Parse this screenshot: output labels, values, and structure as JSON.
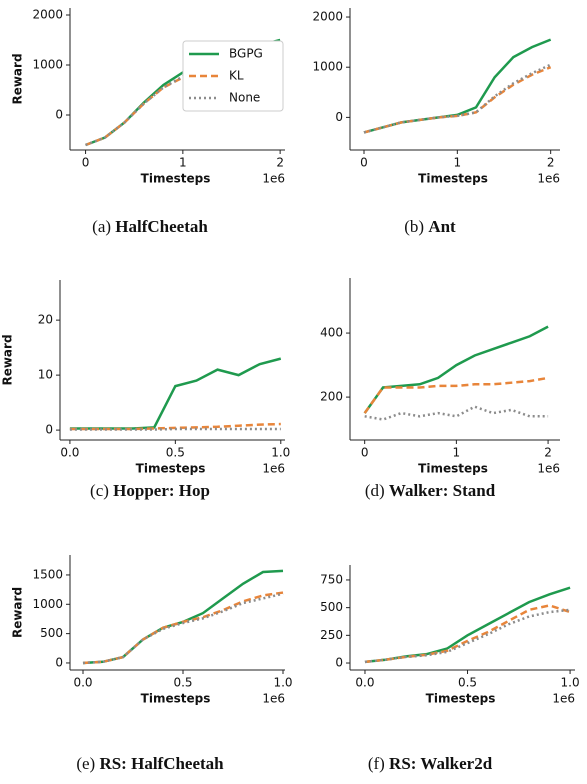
{
  "chart_data": [
    {
      "type": "line",
      "caption_label": "(a)",
      "caption": "HalfCheetah",
      "ylabel": "Reward",
      "xlabel": "Timesteps",
      "x_offset": "1e6",
      "x": [
        0,
        0.2,
        0.4,
        0.6,
        0.8,
        1.0,
        1.2,
        1.4,
        1.6,
        1.8,
        2.0
      ],
      "xlim": [
        -0.16,
        2.05
      ],
      "ylim": [
        -700,
        2140
      ],
      "xticks": [
        0,
        1,
        2
      ],
      "yticks": [
        0,
        1000,
        2000
      ],
      "legend": "center right",
      "series": [
        {
          "name": "BGPG",
          "color": "#1f9a4e",
          "style": "solid",
          "values": [
            -600,
            -450,
            -150,
            250,
            600,
            850,
            1050,
            1200,
            1300,
            1400,
            1500
          ]
        },
        {
          "name": "KL",
          "color": "#e8853a",
          "style": "dashed",
          "values": [
            -600,
            -450,
            -150,
            230,
            550,
            750,
            880,
            950,
            1000,
            1050,
            1100
          ]
        },
        {
          "name": "None",
          "color": "#8c8c8c",
          "style": "dotted",
          "values": [
            -600,
            -450,
            -150,
            230,
            550,
            770,
            900,
            980,
            1050,
            1120,
            1200
          ]
        }
      ]
    },
    {
      "type": "line",
      "caption_label": "(b)",
      "caption": "Ant",
      "xlabel": "Timesteps",
      "x_offset": "1e6",
      "x": [
        0,
        0.2,
        0.4,
        0.6,
        0.8,
        1.0,
        1.2,
        1.4,
        1.6,
        1.8,
        2.0
      ],
      "xlim": [
        -0.15,
        2.1
      ],
      "ylim": [
        -650,
        2180
      ],
      "xticks": [
        0,
        1,
        2
      ],
      "yticks": [
        0,
        1000,
        2000
      ],
      "series": [
        {
          "color": "#1f9a4e",
          "style": "solid",
          "values": [
            -300,
            -200,
            -100,
            -50,
            0,
            50,
            200,
            800,
            1200,
            1400,
            1550
          ]
        },
        {
          "color": "#e8853a",
          "style": "dashed",
          "values": [
            -300,
            -200,
            -100,
            -50,
            0,
            30,
            100,
            400,
            650,
            850,
            1000
          ]
        },
        {
          "color": "#8c8c8c",
          "style": "dotted",
          "values": [
            -300,
            -200,
            -100,
            -50,
            0,
            30,
            100,
            420,
            680,
            880,
            1050
          ]
        }
      ]
    },
    {
      "type": "line",
      "caption_label": "(c)",
      "caption": "Hopper: Hop",
      "ylabel": "Reward",
      "xlabel": "Timesteps",
      "x_offset": "1e6",
      "x": [
        0,
        0.1,
        0.2,
        0.3,
        0.4,
        0.5,
        0.6,
        0.7,
        0.8,
        0.9,
        1.0
      ],
      "xlim": [
        -0.047,
        1.02
      ],
      "ylim": [
        -1.8,
        27.3
      ],
      "xticks": [
        {
          "value": 0,
          "label": "0.0"
        },
        {
          "value": 0.5,
          "label": "0.5"
        },
        {
          "value": 1,
          "label": "1.0"
        }
      ],
      "yticks": [
        0,
        10,
        20
      ],
      "series": [
        {
          "color": "#1f9a4e",
          "style": "solid",
          "values": [
            0.3,
            0.3,
            0.3,
            0.3,
            0.5,
            8,
            9,
            11,
            10,
            12,
            13
          ]
        },
        {
          "color": "#e8853a",
          "style": "dashed",
          "values": [
            0.2,
            0.2,
            0.2,
            0.2,
            0.3,
            0.4,
            0.5,
            0.6,
            0.8,
            1,
            1.1
          ]
        },
        {
          "color": "#8c8c8c",
          "style": "dotted",
          "values": [
            0.1,
            0.1,
            0.1,
            0.1,
            0.1,
            0.2,
            0.2,
            0.2,
            0.2,
            0.2,
            0.2
          ]
        }
      ]
    },
    {
      "type": "line",
      "caption_label": "(d)",
      "caption": "Walker: Stand",
      "xlabel": "Timesteps",
      "x_offset": "1e6",
      "x": [
        0,
        0.2,
        0.4,
        0.6,
        0.8,
        1.0,
        1.2,
        1.4,
        1.6,
        1.8,
        2.0
      ],
      "xlim": [
        -0.16,
        2.13
      ],
      "ylim": [
        66,
        572
      ],
      "xticks": [
        0,
        1,
        2
      ],
      "yticks": [
        200,
        400
      ],
      "series": [
        {
          "color": "#1f9a4e",
          "style": "solid",
          "values": [
            150,
            230,
            235,
            240,
            260,
            300,
            330,
            350,
            370,
            390,
            420
          ]
        },
        {
          "color": "#e8853a",
          "style": "dashed",
          "values": [
            150,
            230,
            230,
            230,
            235,
            235,
            240,
            240,
            245,
            250,
            260
          ]
        },
        {
          "color": "#8c8c8c",
          "style": "dotted",
          "values": [
            140,
            130,
            150,
            140,
            150,
            140,
            170,
            150,
            160,
            140,
            140
          ]
        }
      ]
    },
    {
      "type": "line",
      "caption_label": "(e)",
      "caption": "RS: HalfCheetah",
      "ylabel": "Reward",
      "xlabel": "Timesteps",
      "x_offset": "1e6",
      "x": [
        0,
        0.1,
        0.2,
        0.3,
        0.4,
        0.5,
        0.6,
        0.7,
        0.8,
        0.9,
        1.0
      ],
      "xlim": [
        -0.065,
        1.01
      ],
      "ylim": [
        -120,
        1840
      ],
      "xticks": [
        {
          "value": 0,
          "label": "0.0"
        },
        {
          "value": 0.5,
          "label": "0.5"
        },
        {
          "value": 1,
          "label": "1.0"
        }
      ],
      "yticks": [
        0,
        500,
        1000,
        1500
      ],
      "series": [
        {
          "color": "#1f9a4e",
          "style": "solid",
          "values": [
            0,
            20,
            100,
            400,
            600,
            700,
            850,
            1100,
            1350,
            1550,
            1570
          ]
        },
        {
          "color": "#e8853a",
          "style": "dashed",
          "values": [
            0,
            20,
            100,
            400,
            600,
            700,
            780,
            900,
            1050,
            1150,
            1200
          ]
        },
        {
          "color": "#8c8c8c",
          "style": "dotted",
          "values": [
            0,
            20,
            100,
            400,
            580,
            680,
            760,
            880,
            1020,
            1100,
            1180
          ]
        }
      ]
    },
    {
      "type": "line",
      "caption_label": "(f)",
      "caption": "RS: Walker2d",
      "xlabel": "Timesteps",
      "x_offset": "1e6",
      "x": [
        0,
        0.1,
        0.2,
        0.3,
        0.4,
        0.5,
        0.6,
        0.7,
        0.8,
        0.9,
        1.0
      ],
      "xlim": [
        -0.073,
        1.024
      ],
      "ylim": [
        -63,
        885
      ],
      "xticks": [
        {
          "value": 0,
          "label": "0.0"
        },
        {
          "value": 0.5,
          "label": "0.5"
        },
        {
          "value": 1,
          "label": "1.0"
        }
      ],
      "yticks": [
        0,
        250,
        500,
        750
      ],
      "series": [
        {
          "color": "#1f9a4e",
          "style": "solid",
          "values": [
            10,
            30,
            60,
            80,
            130,
            250,
            350,
            450,
            550,
            620,
            680
          ]
        },
        {
          "color": "#e8853a",
          "style": "dashed",
          "values": [
            10,
            30,
            55,
            75,
            110,
            200,
            280,
            380,
            480,
            520,
            460
          ]
        },
        {
          "color": "#8c8c8c",
          "style": "dotted",
          "values": [
            10,
            30,
            55,
            70,
            100,
            180,
            260,
            350,
            420,
            460,
            480
          ]
        }
      ]
    }
  ]
}
